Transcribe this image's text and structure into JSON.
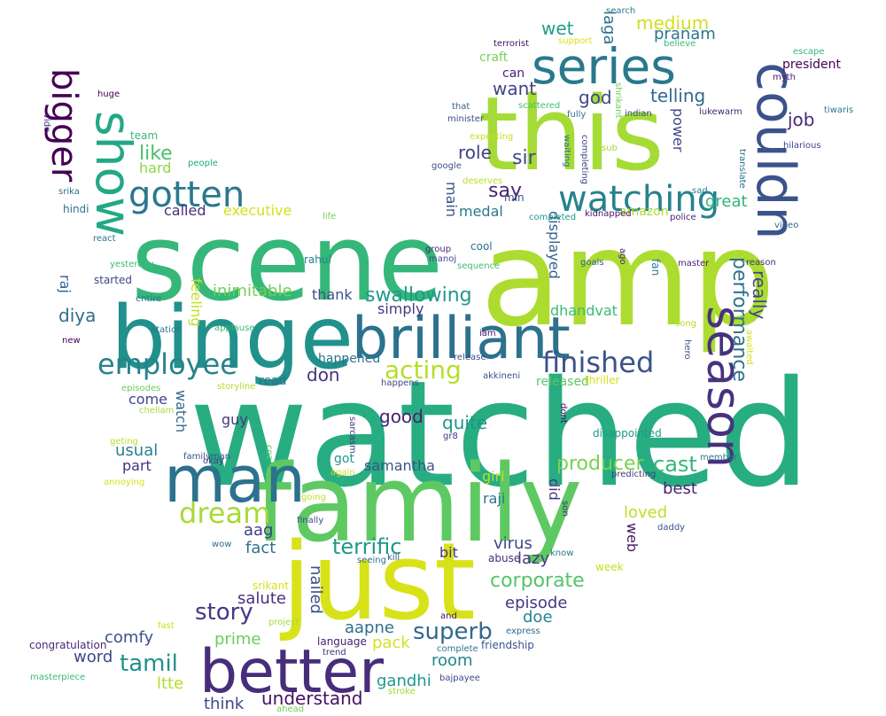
{
  "words": [
    {
      "text": "watched",
      "c": "#27ad81"
    },
    {
      "text": "amp",
      "c": "#addc30"
    },
    {
      "text": "scene",
      "c": "#35b779"
    },
    {
      "text": "family",
      "c": "#5ec962"
    },
    {
      "text": "just",
      "c": "#d8e219"
    },
    {
      "text": "this",
      "c": "#a5db36"
    },
    {
      "text": "binge",
      "c": "#21918c"
    },
    {
      "text": "brilliant",
      "c": "#2c728e"
    },
    {
      "text": "better",
      "c": "#472d7b"
    },
    {
      "text": "man",
      "c": "#2c728e"
    },
    {
      "text": "series",
      "c": "#2a788e"
    },
    {
      "text": "couldn",
      "c": "#3b528b"
    },
    {
      "text": "show",
      "c": "#22a884"
    },
    {
      "text": "season",
      "c": "#46327e"
    },
    {
      "text": "watching",
      "c": "#26828e"
    },
    {
      "text": "gotten",
      "c": "#2a788e"
    },
    {
      "text": "employee",
      "c": "#26828e"
    },
    {
      "text": "finished",
      "c": "#3b528b"
    },
    {
      "text": "bigger",
      "c": "#440154"
    },
    {
      "text": "dream",
      "c": "#a5db36"
    },
    {
      "text": "performance",
      "c": "#2c728e"
    },
    {
      "text": "acting",
      "c": "#b5de2b"
    },
    {
      "text": "superb",
      "c": "#31688e"
    },
    {
      "text": "tamil",
      "c": "#21918c"
    },
    {
      "text": "story",
      "c": "#443983"
    },
    {
      "text": "terrific",
      "c": "#1f988b"
    },
    {
      "text": "corporate",
      "c": "#54c568"
    },
    {
      "text": "swallowing",
      "c": "#1f9a8a"
    },
    {
      "text": "producer",
      "c": "#7ad151"
    },
    {
      "text": "understand",
      "c": "#471164"
    },
    {
      "text": "cast",
      "c": "#35b779"
    },
    {
      "text": "like",
      "c": "#4ac16d"
    },
    {
      "text": "wet",
      "c": "#1f9e89"
    },
    {
      "text": "medium",
      "c": "#d0e11c"
    },
    {
      "text": "job",
      "c": "#482878"
    },
    {
      "text": "telling",
      "c": "#31688e"
    },
    {
      "text": "god",
      "c": "#3e4989"
    },
    {
      "text": "say",
      "c": "#482475"
    },
    {
      "text": "sir",
      "c": "#3e4989"
    },
    {
      "text": "role",
      "c": "#433e85"
    },
    {
      "text": "want",
      "c": "#414487"
    },
    {
      "text": "really",
      "c": "#3f4788"
    },
    {
      "text": "don",
      "c": "#46337f"
    },
    {
      "text": "good",
      "c": "#482173"
    },
    {
      "text": "quite",
      "c": "#1f958b"
    },
    {
      "text": "inimitable",
      "c": "#70cf57"
    },
    {
      "text": "diya",
      "c": "#2e6f8e"
    },
    {
      "text": "word",
      "c": "#3f4788"
    },
    {
      "text": "comfy",
      "c": "#3b528b"
    },
    {
      "text": "prime",
      "c": "#6ccd5a"
    },
    {
      "text": "room",
      "c": "#25848e"
    },
    {
      "text": "aapne",
      "c": "#2e6e8e"
    },
    {
      "text": "episode",
      "c": "#453781"
    },
    {
      "text": "loved",
      "c": "#bddf26"
    },
    {
      "text": "best",
      "c": "#482475"
    },
    {
      "text": "great",
      "c": "#2fb47c"
    },
    {
      "text": "amazon",
      "c": "#a8db34"
    },
    {
      "text": "pranam",
      "c": "#2a778e"
    },
    {
      "text": "laga",
      "c": "#2e6f8e"
    },
    {
      "text": "ltte",
      "c": "#b2dd2d"
    },
    {
      "text": "gandhi",
      "c": "#1f988b"
    },
    {
      "text": "think",
      "c": "#404688"
    },
    {
      "text": "salute",
      "c": "#46307e"
    },
    {
      "text": "nailed",
      "c": "#3b528b"
    },
    {
      "text": "pack",
      "c": "#d2e21b"
    },
    {
      "text": "doe",
      "c": "#24868e"
    },
    {
      "text": "lazy",
      "c": "#453882"
    },
    {
      "text": "virus",
      "c": "#3e4989"
    },
    {
      "text": "fact",
      "c": "#2d718e"
    },
    {
      "text": "aag",
      "c": "#423f85"
    },
    {
      "text": "bit",
      "c": "#463480"
    },
    {
      "text": "raji",
      "c": "#2b758e"
    },
    {
      "text": "girl",
      "c": "#bade28"
    },
    {
      "text": "did",
      "c": "#453882"
    },
    {
      "text": "web",
      "c": "#481467"
    },
    {
      "text": "samantha",
      "c": "#3a548c"
    },
    {
      "text": "got",
      "c": "#1f998a"
    },
    {
      "text": "usual",
      "c": "#27808e"
    },
    {
      "text": "part",
      "c": "#46327e"
    },
    {
      "text": "come",
      "c": "#404588"
    },
    {
      "text": "watch",
      "c": "#31688e"
    },
    {
      "text": "feeling",
      "c": "#c2df23"
    },
    {
      "text": "guy",
      "c": "#453781"
    },
    {
      "text": "raj",
      "c": "#33628d"
    },
    {
      "text": "called",
      "c": "#472e7c"
    },
    {
      "text": "executive",
      "c": "#d2e21b"
    },
    {
      "text": "medal",
      "c": "#2a788e"
    },
    {
      "text": "thank",
      "c": "#3c508b"
    },
    {
      "text": "simply",
      "c": "#453882"
    },
    {
      "text": "dhandvat",
      "c": "#3bbb75"
    },
    {
      "text": "happened",
      "c": "#2c718e"
    },
    {
      "text": "read",
      "c": "#2d708e"
    },
    {
      "text": "released",
      "c": "#5ec962"
    },
    {
      "text": "displayed",
      "c": "#33628d"
    },
    {
      "text": "main",
      "c": "#39568c"
    },
    {
      "text": "hard",
      "c": "#8bd646"
    },
    {
      "text": "team",
      "c": "#35b779"
    },
    {
      "text": "can",
      "c": "#482475"
    },
    {
      "text": "craft",
      "c": "#7ad151"
    },
    {
      "text": "power",
      "c": "#3f4788"
    },
    {
      "text": "started",
      "c": "#414487"
    },
    {
      "text": "cool",
      "c": "#2d708e"
    },
    {
      "text": "president",
      "c": "#440154"
    },
    {
      "text": "video",
      "c": "#31688e"
    },
    {
      "text": "fan",
      "c": "#2a788e"
    },
    {
      "text": "thriller",
      "c": "#d8e219"
    },
    {
      "text": "disappointed",
      "c": "#1f988b"
    },
    {
      "text": "happens",
      "c": "#3e4a89"
    },
    {
      "text": "congratulation",
      "c": "#482878"
    },
    {
      "text": "masterpiece",
      "c": "#3aba76"
    },
    {
      "text": "language",
      "c": "#482173"
    },
    {
      "text": "project",
      "c": "#a5db36"
    },
    {
      "text": "trend",
      "c": "#462f7e"
    },
    {
      "text": "friendship",
      "c": "#3a548c"
    },
    {
      "text": "express",
      "c": "#31688e"
    },
    {
      "text": "complete",
      "c": "#2a768e"
    },
    {
      "text": "bajpayee",
      "c": "#3e4989"
    },
    {
      "text": "ahead",
      "c": "#6ece58"
    },
    {
      "text": "stroke",
      "c": "#a2da37"
    },
    {
      "text": "and",
      "c": "#471063"
    },
    {
      "text": "fast",
      "c": "#c8e020"
    },
    {
      "text": "srikant",
      "c": "#d8e219"
    },
    {
      "text": "hindi",
      "c": "#2c728e"
    },
    {
      "text": "react",
      "c": "#2d718e"
    },
    {
      "text": "yesterday",
      "c": "#3cbb75"
    },
    {
      "text": "entire",
      "c": "#2c728e"
    },
    {
      "text": "station",
      "c": "#2a778e"
    },
    {
      "text": "new",
      "c": "#440154"
    },
    {
      "text": "episodes",
      "c": "#6ccd5a"
    },
    {
      "text": "chellam",
      "c": "#a8db34"
    },
    {
      "text": "geting",
      "c": "#bade28"
    },
    {
      "text": "familyman",
      "c": "#3b528b"
    },
    {
      "text": "okay",
      "c": "#453882"
    },
    {
      "text": "annoying",
      "c": "#d2e21b"
    },
    {
      "text": "coz",
      "c": "#5ec962"
    },
    {
      "text": "again",
      "c": "#cae11f"
    },
    {
      "text": "going",
      "c": "#c0df25"
    },
    {
      "text": "finally",
      "c": "#3f4788"
    },
    {
      "text": "wow",
      "c": "#2e6e8e"
    },
    {
      "text": "seeing",
      "c": "#2c718e"
    },
    {
      "text": "kill",
      "c": "#3b528b"
    },
    {
      "text": "abuse",
      "c": "#472c7a"
    },
    {
      "text": "know",
      "c": "#2a788e"
    },
    {
      "text": "week",
      "c": "#c5e021"
    },
    {
      "text": "daddy",
      "c": "#3a548c"
    },
    {
      "text": "son",
      "c": "#472e7c"
    },
    {
      "text": "predicting",
      "c": "#44397f"
    },
    {
      "text": "member",
      "c": "#2a788e"
    },
    {
      "text": "sarcasm",
      "c": "#443a83"
    },
    {
      "text": "gr8",
      "c": "#453581"
    },
    {
      "text": "dont",
      "c": "#471365"
    },
    {
      "text": "storyline",
      "c": "#b2dd2d"
    },
    {
      "text": "akkineni",
      "c": "#3b528b"
    },
    {
      "text": "release",
      "c": "#3d4e8a"
    },
    {
      "text": "iam",
      "c": "#471365"
    },
    {
      "text": "applause",
      "c": "#3aba76"
    },
    {
      "text": "rahul",
      "c": "#26828e"
    },
    {
      "text": "manoj",
      "c": "#3e4989"
    },
    {
      "text": "group",
      "c": "#482878"
    },
    {
      "text": "sequence",
      "c": "#3fbc73"
    },
    {
      "text": "goals",
      "c": "#35608d"
    },
    {
      "text": "ago",
      "c": "#482677"
    },
    {
      "text": "master",
      "c": "#482475"
    },
    {
      "text": "reason",
      "c": "#46337f"
    },
    {
      "text": "song",
      "c": "#b8de29"
    },
    {
      "text": "hero",
      "c": "#3b528b"
    },
    {
      "text": "awaited",
      "c": "#d2e21b"
    },
    {
      "text": "sad",
      "c": "#26828e"
    },
    {
      "text": "police",
      "c": "#482475"
    },
    {
      "text": "kidnapped",
      "c": "#471063"
    },
    {
      "text": "completed",
      "c": "#1f978b"
    },
    {
      "text": "min",
      "c": "#3a548c"
    },
    {
      "text": "life",
      "c": "#6ece58"
    },
    {
      "text": "deserves",
      "c": "#b5de2b"
    },
    {
      "text": "google",
      "c": "#3d4d8a"
    },
    {
      "text": "expecting",
      "c": "#c8e020"
    },
    {
      "text": "minister",
      "c": "#3e4989"
    },
    {
      "text": "that",
      "c": "#33628d"
    },
    {
      "text": "scattered",
      "c": "#44bf70"
    },
    {
      "text": "fully",
      "c": "#2e6f8e"
    },
    {
      "text": "shrikant",
      "c": "#6ece58"
    },
    {
      "text": "waiting",
      "c": "#2d718e"
    },
    {
      "text": "completing",
      "c": "#404688"
    },
    {
      "text": "sub",
      "c": "#a5db36"
    },
    {
      "text": "indian",
      "c": "#3b528b"
    },
    {
      "text": "lukewarm",
      "c": "#482878"
    },
    {
      "text": "hilarious",
      "c": "#404588"
    },
    {
      "text": "myth",
      "c": "#482173"
    },
    {
      "text": "tiwaris",
      "c": "#2a788e"
    },
    {
      "text": "escape",
      "c": "#35b779"
    },
    {
      "text": "translate",
      "c": "#2c718e"
    },
    {
      "text": "search",
      "c": "#2a788e"
    },
    {
      "text": "support",
      "c": "#d8e219"
    },
    {
      "text": "believe",
      "c": "#3aba76"
    },
    {
      "text": "terrorist",
      "c": "#471063"
    },
    {
      "text": "huge",
      "c": "#440154"
    },
    {
      "text": "vide",
      "c": "#46327e"
    },
    {
      "text": "people",
      "c": "#22a884"
    },
    {
      "text": "srika",
      "c": "#2e6f8e"
    },
    {
      "text": "epi",
      "c": "#d8e219"
    }
  ]
}
